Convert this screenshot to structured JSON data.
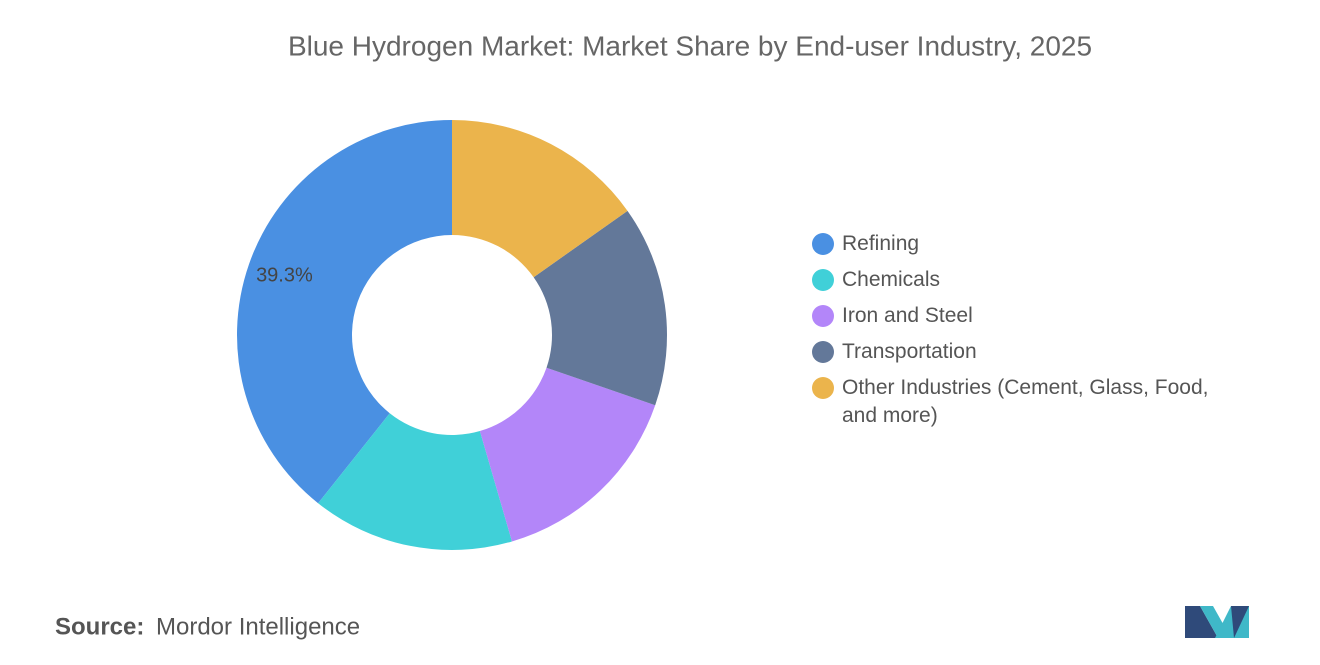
{
  "chart_data": {
    "type": "donut",
    "title": "Blue Hydrogen Market: Market Share by End-user Industry, 2025",
    "categories": [
      "Refining",
      "Chemicals",
      "Iron and Steel",
      "Transportation",
      "Other Industries (Cement, Glass, Food, and more)"
    ],
    "values": [
      39.3,
      15.2,
      15.2,
      15.1,
      15.2
    ],
    "value_labels": [
      "39.3%",
      null,
      null,
      null,
      null
    ],
    "colors": [
      "#4a90e2",
      "#40d0d8",
      "#b386f9",
      "#637899",
      "#ebb44c"
    ],
    "legend": "right"
  },
  "footer": {
    "source_label": "Source:",
    "source": "Mordor Intelligence"
  }
}
